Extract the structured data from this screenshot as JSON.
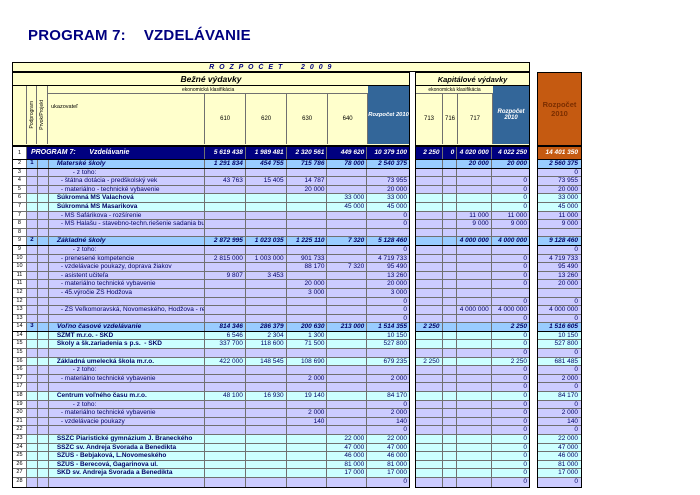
{
  "title": {
    "prefix": "PROGRAM 7:",
    "name": "VZDELÁVANIE"
  },
  "table": {
    "band_title": "R O Z P O Č E T     2 0 0 9",
    "groups": {
      "current": "Bežné výdavky",
      "capital": "Kapitálové výdavky"
    },
    "eco_label": "ekonomická klasifikácia",
    "row_header_labels": {
      "podprogram": "Podprogram",
      "prvok": "Prvok/Projekt",
      "ukazovatel": "ukazovateľ"
    },
    "columns": {
      "current": [
        "610",
        "620",
        "630",
        "640"
      ],
      "current_total": "Rozpočet 2010",
      "capital": [
        "713",
        "716",
        "717"
      ],
      "capital_total": "Rozpočet 2010",
      "grand_total": "Rozpočet 2010"
    },
    "colors": {
      "accent_blue": "#336699",
      "accent_orange": "#C55A11",
      "navy": "#000080",
      "section_bg": "#99CCFF",
      "school_bg": "#CCFFFF",
      "detail_bg": "#CCCCFF",
      "header_bg": "#FFFFCC"
    },
    "rows": [
      {
        "num": "1",
        "pp": "",
        "type": "program",
        "label": "PROGRAM 7:       Vzdelávanie",
        "v": [
          "5 619 438",
          "1 989 481",
          "2 320 561",
          "449 620",
          "10 379 100",
          "2 250",
          "0",
          "4 020 000",
          "4 022 250",
          "14 401 350"
        ]
      },
      {
        "num": "2",
        "pp": "1",
        "type": "section",
        "label": "Materské školy",
        "v": [
          "1 291 834",
          "454 755",
          "715 786",
          "78 000",
          "2 540 375",
          "",
          "",
          "20 000",
          "20 000",
          "2 560 375"
        ]
      },
      {
        "num": "3",
        "pp": "",
        "type": "detail",
        "label": "- z toho:",
        "v": [
          "",
          "",
          "",
          "",
          "",
          "",
          "",
          "",
          "",
          "0"
        ]
      },
      {
        "num": "4",
        "pp": "",
        "type": "detail",
        "label": "- štátna dotácia - predškolský vek",
        "v": [
          "43 763",
          "15 405",
          "14 787",
          "",
          "73 955",
          "",
          "",
          "",
          "0",
          "73 955"
        ]
      },
      {
        "num": "5",
        "pp": "",
        "type": "detail",
        "label": "- materiálno - technické vybavenie",
        "v": [
          "",
          "",
          "20 000",
          "",
          "20 000",
          "",
          "",
          "",
          "0",
          "20 000"
        ]
      },
      {
        "num": "6",
        "pp": "",
        "type": "school",
        "label": "Súkromná MŠ Valachová",
        "v": [
          "",
          "",
          "",
          "33 000",
          "33 000",
          "",
          "",
          "",
          "0",
          "33 000"
        ]
      },
      {
        "num": "7",
        "pp": "",
        "type": "school",
        "label": "Súkromná MŠ Masarikova",
        "v": [
          "",
          "",
          "",
          "45 000",
          "45 000",
          "",
          "",
          "",
          "0",
          "45 000"
        ]
      },
      {
        "num": "7",
        "pp": "",
        "type": "detail",
        "label": "- MŠ Šafárikova - rozšírenie",
        "v": [
          "",
          "",
          "",
          "",
          "0",
          "",
          "",
          "11 000",
          "11 000",
          "11 000"
        ]
      },
      {
        "num": "8",
        "pp": "",
        "type": "detail",
        "label": "- MŠ Halašu - stavebno-techn.riešenie sadania budovy",
        "v": [
          "",
          "",
          "",
          "",
          "0",
          "",
          "",
          "9 000",
          "9 000",
          "9 000"
        ]
      },
      {
        "num": "8",
        "pp": "",
        "type": "blank",
        "label": "",
        "v": [
          "",
          "",
          "",
          "",
          "",
          "",
          "",
          "",
          "",
          ""
        ]
      },
      {
        "num": "9",
        "pp": "2",
        "type": "section",
        "label": "Základné školy",
        "v": [
          "2 872 995",
          "1 023 035",
          "1 225 110",
          "7 320",
          "5 128 460",
          "",
          "",
          "4 000 000",
          "4 000 000",
          "9 128 460"
        ]
      },
      {
        "num": "9",
        "pp": "",
        "type": "detail",
        "label": "- z toho:",
        "v": [
          "",
          "",
          "",
          "",
          "0",
          "",
          "",
          "",
          "",
          "0"
        ]
      },
      {
        "num": "10",
        "pp": "",
        "type": "detail",
        "label": "- prenesené kompetencie",
        "v": [
          "2 815 000",
          "1 003 000",
          "901 733",
          "",
          "4 719 733",
          "",
          "",
          "",
          "0",
          "4 719 733"
        ]
      },
      {
        "num": "10",
        "pp": "",
        "type": "detail",
        "label": "- vzdelávacie poukazy, doprava žiakov",
        "v": [
          "",
          "",
          "88 170",
          "7 320",
          "95 490",
          "",
          "",
          "",
          "0",
          "95 490"
        ]
      },
      {
        "num": "11",
        "pp": "",
        "type": "detail",
        "label": "- asistent učiteľa",
        "v": [
          "9 807",
          "3 453",
          "",
          "",
          "13 260",
          "",
          "",
          "",
          "0",
          "13 260"
        ]
      },
      {
        "num": "11",
        "pp": "",
        "type": "detail",
        "label": "- materiálno technické vybavenie",
        "v": [
          "",
          "",
          "20 000",
          "",
          "20 000",
          "",
          "",
          "",
          "0",
          "20 000"
        ]
      },
      {
        "num": "12",
        "pp": "",
        "type": "detail",
        "label": "- 45.výročie ZŠ Hodžova",
        "v": [
          "",
          "",
          "3 000",
          "",
          "3 000",
          "",
          "",
          "",
          "",
          ""
        ]
      },
      {
        "num": "12",
        "pp": "",
        "type": "blank",
        "label": "",
        "v": [
          "",
          "",
          "",
          "",
          "0",
          "",
          "",
          "",
          "0",
          "0"
        ]
      },
      {
        "num": "13",
        "pp": "",
        "type": "detail",
        "label": "- ZŠ Veľkomoravská, Novomeského, Hodžova - rekonš.",
        "v": [
          "",
          "",
          "",
          "",
          "0",
          "",
          "",
          "4 000 000",
          "4 000 000",
          "4 000 000"
        ]
      },
      {
        "num": "13",
        "pp": "",
        "type": "blank",
        "label": "",
        "v": [
          "",
          "",
          "",
          "",
          "0",
          "",
          "",
          "",
          "0",
          "0"
        ]
      },
      {
        "num": "14",
        "pp": "3",
        "type": "section",
        "label": "Voľno časové vzdelávanie",
        "v": [
          "814 346",
          "286 379",
          "200 630",
          "213 000",
          "1 514 355",
          "2 250",
          "",
          "",
          "2 250",
          "1 516 605"
        ]
      },
      {
        "num": "14",
        "pp": "",
        "type": "school",
        "label": "ŠZMT m.r.o. - ŠKD",
        "v": [
          "6 546",
          "2 304",
          "1 300",
          "",
          "10 150",
          "",
          "",
          "",
          "0",
          "10 150"
        ]
      },
      {
        "num": "15",
        "pp": "",
        "type": "school",
        "label": "Školy a šk.zariadenia s p.s.  - ŠKD",
        "v": [
          "337 700",
          "118 600",
          "71 500",
          "",
          "527 800",
          "",
          "",
          "",
          "0",
          "527 800"
        ]
      },
      {
        "num": "15",
        "pp": "",
        "type": "blank",
        "label": "",
        "v": [
          "",
          "",
          "",
          "",
          "",
          "",
          "",
          "",
          "0",
          "0"
        ]
      },
      {
        "num": "16",
        "pp": "",
        "type": "school",
        "label": "Základná umelecká škola m.r.o.",
        "v": [
          "422 000",
          "148 545",
          "108 690",
          "",
          "679 235",
          "2 250",
          "",
          "",
          "2 250",
          "681 485"
        ]
      },
      {
        "num": "16",
        "pp": "",
        "type": "detail",
        "label": "- z toho:",
        "v": [
          "",
          "",
          "",
          "",
          "",
          "",
          "",
          "",
          "0",
          "0"
        ]
      },
      {
        "num": "17",
        "pp": "",
        "type": "detail",
        "label": "- materiálno technické vybavenie",
        "v": [
          "",
          "",
          "2 000",
          "",
          "2 000",
          "",
          "",
          "",
          "0",
          "2 000"
        ]
      },
      {
        "num": "17",
        "pp": "",
        "type": "blank",
        "label": "",
        "v": [
          "",
          "",
          "",
          "",
          "",
          "",
          "",
          "",
          "0",
          "0"
        ]
      },
      {
        "num": "18",
        "pp": "",
        "type": "school",
        "label": "Centrum voľného času m.r.o.",
        "v": [
          "48 100",
          "16 930",
          "19 140",
          "",
          "84 170",
          "",
          "",
          "",
          "0",
          "84 170"
        ]
      },
      {
        "num": "19",
        "pp": "",
        "type": "detail",
        "label": "- z toho:",
        "v": [
          "",
          "",
          "",
          "",
          "0",
          "",
          "",
          "",
          "0",
          "0"
        ]
      },
      {
        "num": "20",
        "pp": "",
        "type": "detail",
        "label": "- materiálno technické vybavenie",
        "v": [
          "",
          "",
          "2 000",
          "",
          "2 000",
          "",
          "",
          "",
          "0",
          "2 000"
        ]
      },
      {
        "num": "21",
        "pp": "",
        "type": "detail",
        "label": "- vzdelávacie poukazy",
        "v": [
          "",
          "",
          "140",
          "",
          "140",
          "",
          "",
          "",
          "0",
          "140"
        ]
      },
      {
        "num": "22",
        "pp": "",
        "type": "blank",
        "label": "",
        "v": [
          "",
          "",
          "",
          "",
          "0",
          "",
          "",
          "",
          "0",
          "0"
        ]
      },
      {
        "num": "23",
        "pp": "",
        "type": "school",
        "label": "ŠSZČ Piaristické gymnázium J. Braneckého",
        "v": [
          "",
          "",
          "",
          "22 000",
          "22 000",
          "",
          "",
          "",
          "0",
          "22 000"
        ]
      },
      {
        "num": "24",
        "pp": "",
        "type": "school",
        "label": "ŠSZČ sv. Andreja Svorada a Benedikta",
        "v": [
          "",
          "",
          "",
          "47 000",
          "47 000",
          "",
          "",
          "",
          "0",
          "47 000"
        ]
      },
      {
        "num": "25",
        "pp": "",
        "type": "school",
        "label": "SZUŠ - Bebjaková, L.Novomeského",
        "v": [
          "",
          "",
          "",
          "46 000",
          "46 000",
          "",
          "",
          "",
          "0",
          "46 000"
        ]
      },
      {
        "num": "26",
        "pp": "",
        "type": "school",
        "label": "SZUŠ - Berecová, Gagarinova ul.",
        "v": [
          "",
          "",
          "",
          "81 000",
          "81 000",
          "",
          "",
          "",
          "0",
          "81 000"
        ]
      },
      {
        "num": "27",
        "pp": "",
        "type": "school",
        "label": "ŠKD sv. Andreja Svorada a Benedikta",
        "v": [
          "",
          "",
          "",
          "17 000",
          "17 000",
          "",
          "",
          "",
          "0",
          "17 000"
        ]
      },
      {
        "num": "28",
        "pp": "",
        "type": "blank",
        "label": "",
        "v": [
          "",
          "",
          "",
          "",
          "0",
          "",
          "",
          "",
          "0",
          "0"
        ]
      }
    ]
  }
}
